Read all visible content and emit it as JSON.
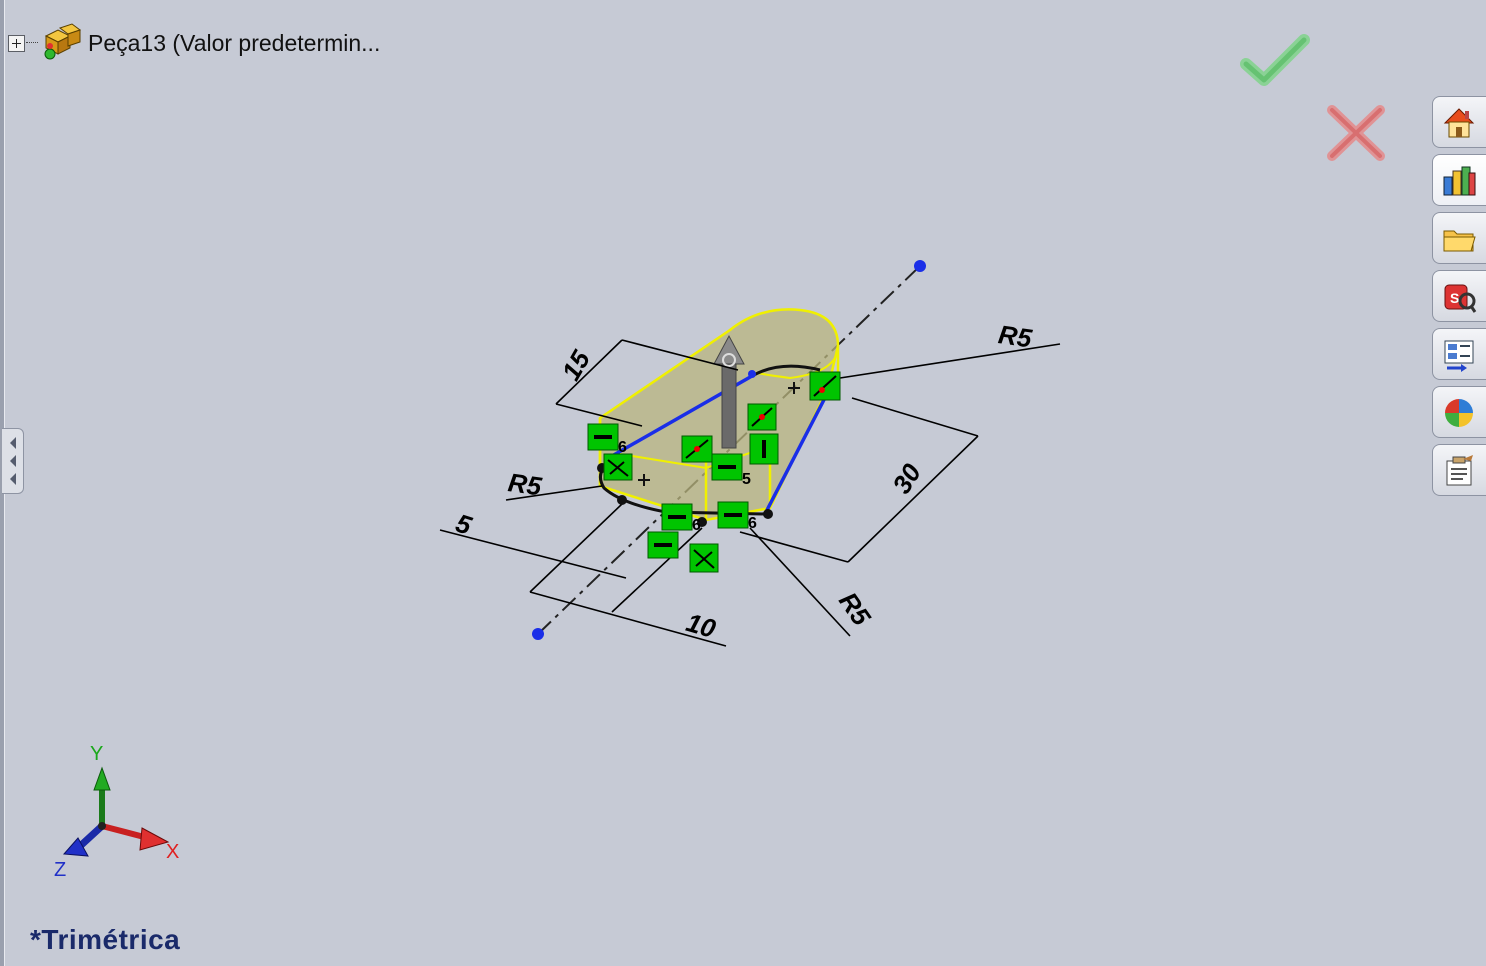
{
  "tree": {
    "root_label": "Peça13  (Valor predetermin..."
  },
  "confirm": {
    "ok": "ok-check",
    "cancel": "cancel-x"
  },
  "taskpane": {
    "buttons": [
      {
        "icon": "home-icon"
      },
      {
        "icon": "design-library-icon"
      },
      {
        "icon": "folder-icon"
      },
      {
        "icon": "view-palette-icon"
      },
      {
        "icon": "properties-icon"
      },
      {
        "icon": "appearances-icon"
      },
      {
        "icon": "custom-properties-icon"
      }
    ]
  },
  "sketch": {
    "dims": {
      "d15": "15",
      "r5_top": "R5",
      "d30": "30",
      "r5_left": "R5",
      "d5": "5",
      "d10": "10",
      "r5_bottom": "R5"
    },
    "relation_numbers": [
      "6",
      "5",
      "6",
      "6"
    ]
  },
  "triad": {
    "x": "X",
    "y": "Y",
    "z": "Z"
  },
  "view": {
    "name": "*Trimétrica"
  },
  "colors": {
    "background": "#c6cad5",
    "sketch_blue": "#1a2ee8",
    "extrude_yellow": "#f0f000",
    "relation_green": "#00c400",
    "accept_green": "#5cc66a",
    "cancel_red": "#e06060"
  }
}
